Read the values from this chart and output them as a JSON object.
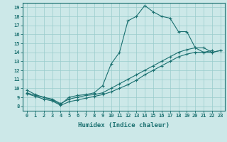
{
  "xlabel": "Humidex (Indice chaleur)",
  "bg_color": "#cce8e8",
  "line_color": "#1a7070",
  "grid_color": "#99cccc",
  "xlim": [
    -0.5,
    23.5
  ],
  "ylim": [
    7.5,
    19.5
  ],
  "xticks": [
    0,
    1,
    2,
    3,
    4,
    5,
    6,
    7,
    8,
    9,
    10,
    11,
    12,
    13,
    14,
    15,
    16,
    17,
    18,
    19,
    20,
    21,
    22,
    23
  ],
  "yticks": [
    8,
    9,
    10,
    11,
    12,
    13,
    14,
    15,
    16,
    17,
    18,
    19
  ],
  "line1_x": [
    0,
    1,
    2,
    3,
    4,
    5,
    6,
    7,
    8,
    9,
    10,
    11,
    12,
    13,
    14,
    15,
    16,
    17,
    18,
    19,
    20,
    21,
    22
  ],
  "line1_y": [
    9.8,
    9.3,
    9.0,
    8.7,
    8.2,
    9.0,
    9.2,
    9.3,
    9.5,
    10.3,
    12.7,
    14.0,
    17.5,
    18.0,
    19.2,
    18.5,
    18.0,
    17.8,
    16.3,
    16.3,
    14.5,
    14.0,
    14.2
  ],
  "line2_x": [
    0,
    1,
    2,
    3,
    4,
    5,
    6,
    7,
    8,
    9,
    10,
    11,
    12,
    13,
    14,
    15,
    16,
    17,
    18,
    19,
    20,
    21,
    22,
    23
  ],
  "line2_y": [
    9.5,
    9.2,
    9.0,
    8.8,
    8.3,
    8.8,
    9.0,
    9.2,
    9.3,
    9.5,
    10.0,
    10.5,
    11.0,
    11.5,
    12.0,
    12.5,
    13.0,
    13.5,
    14.0,
    14.3,
    14.5,
    14.5,
    14.0,
    14.2
  ],
  "line3_x": [
    0,
    1,
    2,
    3,
    4,
    5,
    6,
    7,
    8,
    9,
    10,
    11,
    12,
    13,
    14,
    15,
    16,
    17,
    18,
    19,
    20,
    21,
    22,
    23
  ],
  "line3_y": [
    9.4,
    9.1,
    8.8,
    8.6,
    8.1,
    8.5,
    8.7,
    8.9,
    9.1,
    9.3,
    9.6,
    10.0,
    10.4,
    10.9,
    11.5,
    12.0,
    12.5,
    13.0,
    13.5,
    13.8,
    14.0,
    14.0,
    14.0,
    14.2
  ]
}
